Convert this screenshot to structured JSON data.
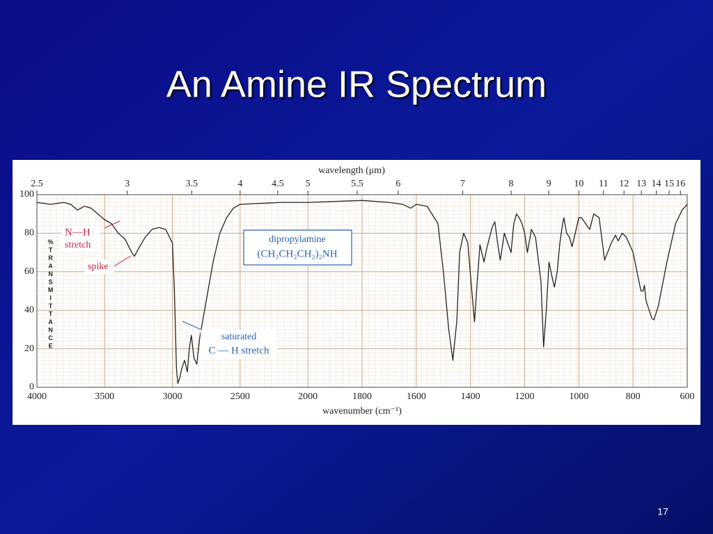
{
  "slide": {
    "title": "An Amine IR Spectrum",
    "page_number": "17"
  },
  "chart_data": {
    "type": "line",
    "x_label": "wavenumber (cm⁻¹)",
    "x2_label": "wavelength (μm)",
    "y_label": "%TRANSMITTANCE",
    "xlim": [
      4000,
      600
    ],
    "xscale": {
      "type": "two-scale",
      "break": 2000,
      "factor": 2
    },
    "xticks": [
      4000,
      3500,
      3000,
      2500,
      2000,
      1800,
      1600,
      1400,
      1200,
      1000,
      800,
      600
    ],
    "x2ticks": [
      {
        "value": 2.5,
        "label": "2.5"
      },
      3,
      3.5,
      4,
      4.5,
      5,
      5.5,
      6,
      7,
      8,
      9,
      10,
      11,
      12,
      13,
      14,
      15,
      16
    ],
    "ylim": [
      0,
      100
    ],
    "yticks": [
      0,
      20,
      40,
      60,
      80,
      100
    ],
    "grid": true,
    "annotations": [
      {
        "text": "N—H",
        "color": "#c8203c"
      },
      {
        "text": "stretch",
        "color": "#c8203c"
      },
      {
        "text": "spike",
        "color": "#c8203c"
      },
      {
        "text": "dipropylamine",
        "color": "#2a62b0"
      },
      {
        "text": "(CH₃CH₂CH₂)₂NH",
        "color": "#2a62b0"
      },
      {
        "text": "saturated",
        "color": "#2a62b0"
      },
      {
        "text": "C — H stretch",
        "color": "#2a62b0"
      }
    ],
    "x": [
      4000,
      3900,
      3800,
      3750,
      3700,
      3650,
      3600,
      3550,
      3500,
      3450,
      3400,
      3350,
      3300,
      3280,
      3250,
      3200,
      3150,
      3100,
      3050,
      3000,
      2985,
      2970,
      2960,
      2945,
      2930,
      2910,
      2890,
      2875,
      2860,
      2840,
      2820,
      2800,
      2750,
      2700,
      2650,
      2600,
      2550,
      2500,
      2200,
      2000,
      1800,
      1700,
      1650,
      1620,
      1600,
      1560,
      1520,
      1500,
      1480,
      1465,
      1450,
      1440,
      1425,
      1410,
      1395,
      1385,
      1375,
      1365,
      1350,
      1340,
      1320,
      1310,
      1300,
      1290,
      1275,
      1265,
      1250,
      1240,
      1230,
      1220,
      1210,
      1200,
      1190,
      1175,
      1160,
      1140,
      1130,
      1120,
      1110,
      1100,
      1090,
      1080,
      1070,
      1060,
      1055,
      1045,
      1035,
      1025,
      1000,
      990,
      975,
      960,
      945,
      925,
      905,
      880,
      865,
      855,
      840,
      825,
      800,
      771,
      763,
      758,
      752,
      731,
      723,
      707,
      675,
      643,
      619,
      600
    ],
    "series": [
      {
        "name": "dipropylamine",
        "color": "#222222",
        "values": [
          96,
          95,
          96,
          95,
          92,
          94,
          93,
          90,
          87,
          85,
          80,
          77,
          70,
          68,
          72,
          78,
          82,
          83,
          82,
          75,
          50,
          10,
          2,
          5,
          10,
          14,
          8,
          20,
          27,
          15,
          12,
          25,
          45,
          65,
          80,
          88,
          93,
          95,
          96,
          96,
          97,
          96,
          95,
          93,
          95,
          94,
          85,
          60,
          30,
          14,
          35,
          70,
          80,
          75,
          50,
          34,
          55,
          74,
          65,
          72,
          83,
          86,
          75,
          66,
          80,
          76,
          70,
          85,
          90,
          88,
          85,
          80,
          70,
          82,
          78,
          55,
          21,
          40,
          65,
          58,
          52,
          60,
          75,
          85,
          88,
          80,
          78,
          73,
          88,
          88,
          85,
          82,
          90,
          88,
          66,
          75,
          79,
          76,
          80,
          78,
          70,
          50,
          50,
          53,
          45,
          36,
          35,
          42,
          65,
          85,
          92,
          95
        ]
      }
    ]
  }
}
